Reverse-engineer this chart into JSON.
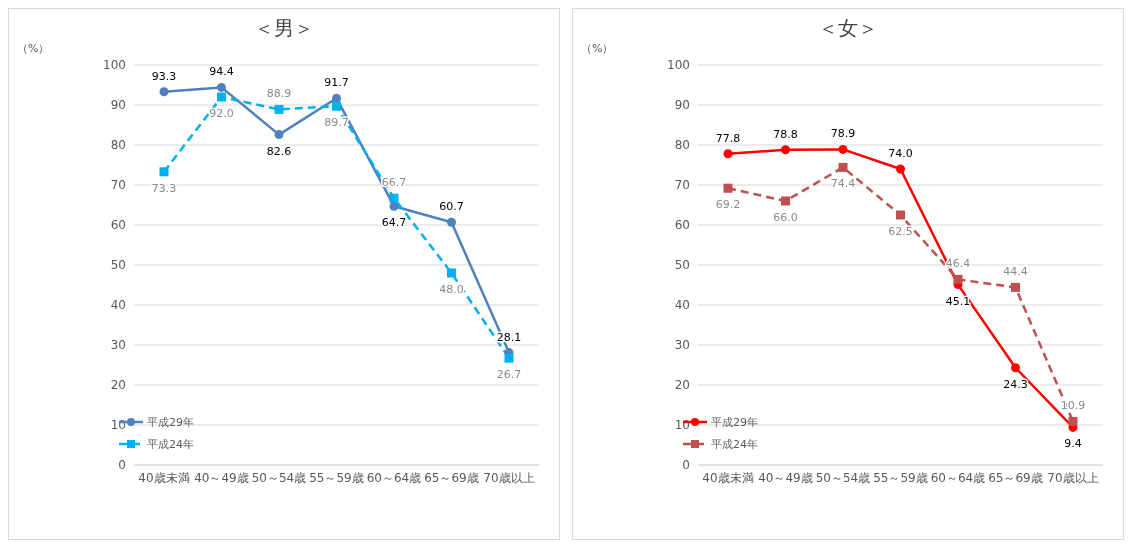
{
  "chart_data": [
    {
      "type": "line",
      "title": "＜男＞",
      "ylabel": "（%）",
      "categories": [
        "40歳未満",
        "40～49歳",
        "50～54歳",
        "55～59歳",
        "60～64歳",
        "65～69歳",
        "70歳以上"
      ],
      "series": [
        {
          "name": "平成29年",
          "color": "#4f81bd",
          "values": [
            93.3,
            94.4,
            82.6,
            91.7,
            64.7,
            60.7,
            28.1
          ],
          "value_labels": [
            "93.3",
            "94.4",
            "82.6",
            "91.7",
            "64.7",
            "60.7",
            "28.1"
          ],
          "marker": "circle",
          "line_style": "solid"
        },
        {
          "name": "平成24年",
          "color": "#00b0f0",
          "values": [
            73.3,
            92.0,
            88.9,
            89.7,
            66.7,
            48.0,
            26.7
          ],
          "value_labels": [
            "73.3",
            "92.0",
            "88.9",
            "89.7",
            "66.7",
            "48.0",
            "26.7"
          ],
          "marker": "square",
          "line_style": "dashed"
        }
      ],
      "ylim": [
        0,
        100
      ],
      "yticks": [
        0,
        10,
        20,
        30,
        40,
        50,
        60,
        70,
        80,
        90,
        100
      ],
      "grid": "y",
      "legend": "bottom left"
    },
    {
      "type": "line",
      "title": "＜女＞",
      "ylabel": "（%）",
      "categories": [
        "40歳未満",
        "40～49歳",
        "50～54歳",
        "55～59歳",
        "60～64歳",
        "65～69歳",
        "70歳以上"
      ],
      "series": [
        {
          "name": "平成29年",
          "color": "#ff0000",
          "values": [
            77.8,
            78.8,
            78.9,
            74.0,
            45.1,
            24.3,
            9.4
          ],
          "value_labels": [
            "77.8",
            "78.8",
            "78.9",
            "74.0",
            "45.1",
            "24.3",
            "9.4"
          ],
          "marker": "circle",
          "line_style": "solid"
        },
        {
          "name": "平成24年",
          "color": "#c0504d",
          "values": [
            69.2,
            66.0,
            74.4,
            62.5,
            46.4,
            44.4,
            10.9
          ],
          "value_labels": [
            "69.2",
            "66.0",
            "74.4",
            "62.5",
            "46.4",
            "44.4",
            "10.9"
          ],
          "marker": "square",
          "line_style": "dashed"
        }
      ],
      "ylim": [
        0,
        100
      ],
      "yticks": [
        0,
        10,
        20,
        30,
        40,
        50,
        60,
        70,
        80,
        90,
        100
      ],
      "grid": "y",
      "legend": "bottom left"
    }
  ]
}
